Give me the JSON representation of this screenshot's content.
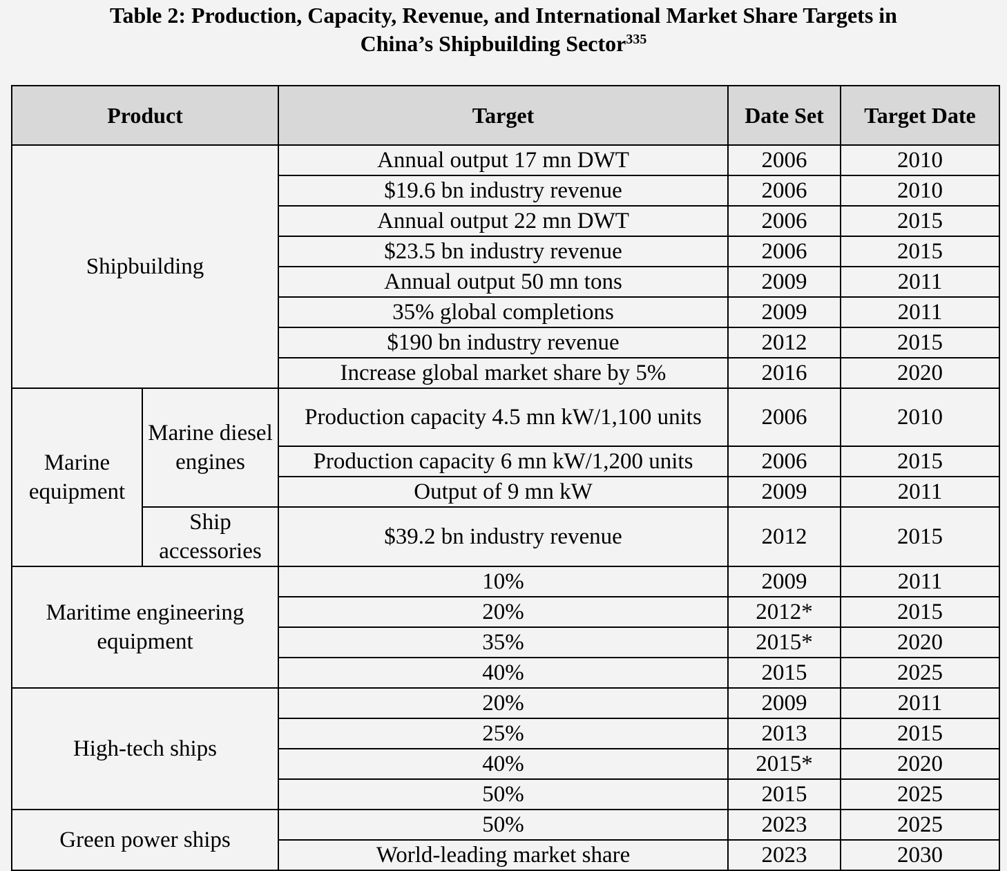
{
  "caption": {
    "line1": "Table 2:  Production, Capacity, Revenue, and International Market Share Targets in",
    "line2": "China’s Shipbuilding Sector",
    "footnote_ref": "335"
  },
  "table": {
    "headers": {
      "product": "Product",
      "target": "Target",
      "date_set": "Date Set",
      "target_date": "Target Date"
    },
    "groups": {
      "shipbuilding": "Shipbuilding",
      "marine_equipment": "Marine equipment",
      "marine_diesel_engines": "Marine diesel engines",
      "ship_accessories": "Ship accessories",
      "maritime_engineering": "Maritime engineering equipment",
      "high_tech_ships": "High-tech ships",
      "green_power_ships": "Green power ships"
    },
    "rows": [
      {
        "target": "Annual output 17 mn DWT",
        "date_set": "2006",
        "target_date": "2010"
      },
      {
        "target": "$19.6 bn industry revenue",
        "date_set": "2006",
        "target_date": "2010"
      },
      {
        "target": "Annual output 22 mn DWT",
        "date_set": "2006",
        "target_date": "2015"
      },
      {
        "target": "$23.5 bn industry revenue",
        "date_set": "2006",
        "target_date": "2015"
      },
      {
        "target": "Annual output 50 mn tons",
        "date_set": "2009",
        "target_date": "2011"
      },
      {
        "target": "35% global completions",
        "date_set": "2009",
        "target_date": "2011"
      },
      {
        "target": "$190 bn industry revenue",
        "date_set": "2012",
        "target_date": "2015"
      },
      {
        "target": "Increase global market share by 5%",
        "date_set": "2016",
        "target_date": "2020"
      },
      {
        "target": "Production capacity 4.5 mn kW/1,100 units",
        "date_set": "2006",
        "target_date": "2010"
      },
      {
        "target": "Production capacity 6 mn kW/1,200 units",
        "date_set": "2006",
        "target_date": "2015"
      },
      {
        "target": "Output of 9 mn kW",
        "date_set": "2009",
        "target_date": "2011"
      },
      {
        "target": "$39.2 bn industry revenue",
        "date_set": "2012",
        "target_date": "2015"
      },
      {
        "target": "10%",
        "date_set": "2009",
        "target_date": "2011"
      },
      {
        "target": "20%",
        "date_set": "2012*",
        "target_date": "2015"
      },
      {
        "target": "35%",
        "date_set": "2015*",
        "target_date": "2020"
      },
      {
        "target": "40%",
        "date_set": "2015",
        "target_date": "2025"
      },
      {
        "target": "20%",
        "date_set": "2009",
        "target_date": "2011"
      },
      {
        "target": "25%",
        "date_set": "2013",
        "target_date": "2015"
      },
      {
        "target": "40%",
        "date_set": "2015*",
        "target_date": "2020"
      },
      {
        "target": "50%",
        "date_set": "2015",
        "target_date": "2025"
      },
      {
        "target": "50%",
        "date_set": "2023",
        "target_date": "2025"
      },
      {
        "target": "World-leading market share",
        "date_set": "2023",
        "target_date": "2030"
      }
    ]
  }
}
